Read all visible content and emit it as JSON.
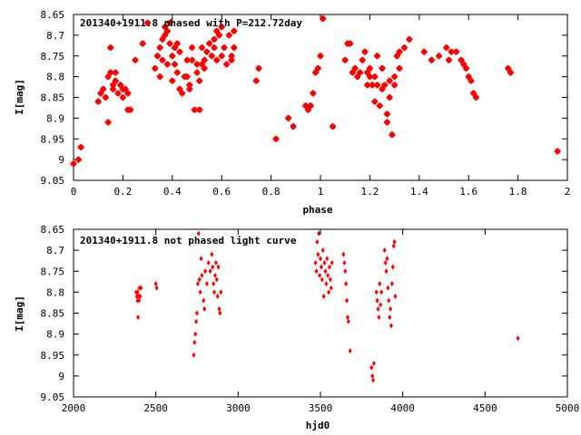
{
  "chart_data": [
    {
      "type": "scatter",
      "title": "201340+1911.8 phased with P=212.72day",
      "xlabel": "phase",
      "ylabel": "I[mag]",
      "xlim": [
        0,
        2
      ],
      "ylim": [
        8.65,
        9.05
      ],
      "y_inverted": true,
      "grid": false,
      "marker": "star",
      "color": "#ff0000",
      "xticks": [
        "0",
        "0.2",
        "0.4",
        "0.6",
        "0.8",
        "1",
        "1.2",
        "1.4",
        "1.6",
        "1.8",
        "2"
      ],
      "yticks": [
        "8.65",
        "8.7",
        "8.75",
        "8.8",
        "8.85",
        "8.9",
        "8.95",
        "9",
        "9.05"
      ],
      "points": [
        [
          0.0,
          9.01
        ],
        [
          0.02,
          9.0
        ],
        [
          0.03,
          8.97
        ],
        [
          0.1,
          8.86
        ],
        [
          0.11,
          8.84
        ],
        [
          0.12,
          8.83
        ],
        [
          0.13,
          8.85
        ],
        [
          0.14,
          8.8
        ],
        [
          0.14,
          8.91
        ],
        [
          0.15,
          8.79
        ],
        [
          0.15,
          8.73
        ],
        [
          0.16,
          8.83
        ],
        [
          0.16,
          8.82
        ],
        [
          0.17,
          8.79
        ],
        [
          0.17,
          8.81
        ],
        [
          0.18,
          8.84
        ],
        [
          0.19,
          8.82
        ],
        [
          0.2,
          8.83
        ],
        [
          0.2,
          8.85
        ],
        [
          0.21,
          8.83
        ],
        [
          0.22,
          8.84
        ],
        [
          0.22,
          8.88
        ],
        [
          0.23,
          8.88
        ],
        [
          0.25,
          8.76
        ],
        [
          0.28,
          8.72
        ],
        [
          0.3,
          8.67
        ],
        [
          0.33,
          8.78
        ],
        [
          0.34,
          8.75
        ],
        [
          0.35,
          8.73
        ],
        [
          0.35,
          8.8
        ],
        [
          0.36,
          8.76
        ],
        [
          0.36,
          8.71
        ],
        [
          0.37,
          8.7
        ],
        [
          0.37,
          8.68
        ],
        [
          0.38,
          8.77
        ],
        [
          0.38,
          8.69
        ],
        [
          0.39,
          8.72
        ],
        [
          0.39,
          8.67
        ],
        [
          0.4,
          8.75
        ],
        [
          0.4,
          8.81
        ],
        [
          0.41,
          8.77
        ],
        [
          0.41,
          8.73
        ],
        [
          0.42,
          8.79
        ],
        [
          0.42,
          8.72
        ],
        [
          0.43,
          8.74
        ],
        [
          0.43,
          8.83
        ],
        [
          0.44,
          8.84
        ],
        [
          0.45,
          8.8
        ],
        [
          0.46,
          8.8
        ],
        [
          0.46,
          8.76
        ],
        [
          0.47,
          8.83
        ],
        [
          0.47,
          8.82
        ],
        [
          0.48,
          8.76
        ],
        [
          0.48,
          8.73
        ],
        [
          0.49,
          8.88
        ],
        [
          0.5,
          8.77
        ],
        [
          0.5,
          8.79
        ],
        [
          0.51,
          8.88
        ],
        [
          0.51,
          8.81
        ],
        [
          0.52,
          8.77
        ],
        [
          0.52,
          8.73
        ],
        [
          0.53,
          8.76
        ],
        [
          0.53,
          8.78
        ],
        [
          0.54,
          8.74
        ],
        [
          0.55,
          8.72
        ],
        [
          0.56,
          8.75
        ],
        [
          0.57,
          8.73
        ],
        [
          0.57,
          8.71
        ],
        [
          0.58,
          8.69
        ],
        [
          0.58,
          8.76
        ],
        [
          0.59,
          8.7
        ],
        [
          0.6,
          8.68
        ],
        [
          0.6,
          8.75
        ],
        [
          0.61,
          8.73
        ],
        [
          0.62,
          8.77
        ],
        [
          0.63,
          8.7
        ],
        [
          0.64,
          8.75
        ],
        [
          0.64,
          8.76
        ],
        [
          0.65,
          8.73
        ],
        [
          0.65,
          8.69
        ],
        [
          0.74,
          8.81
        ],
        [
          0.75,
          8.78
        ],
        [
          0.82,
          8.95
        ],
        [
          0.87,
          8.9
        ],
        [
          0.89,
          8.92
        ],
        [
          0.94,
          8.87
        ],
        [
          0.95,
          8.88
        ],
        [
          0.96,
          8.87
        ],
        [
          0.97,
          8.84
        ],
        [
          0.98,
          8.79
        ],
        [
          0.99,
          8.78
        ],
        [
          1.0,
          8.75
        ],
        [
          1.01,
          8.66
        ],
        [
          1.05,
          8.92
        ],
        [
          1.1,
          8.76
        ],
        [
          1.11,
          8.72
        ],
        [
          1.12,
          8.72
        ],
        [
          1.13,
          8.79
        ],
        [
          1.14,
          8.78
        ],
        [
          1.15,
          8.8
        ],
        [
          1.16,
          8.79
        ],
        [
          1.17,
          8.76
        ],
        [
          1.18,
          8.74
        ],
        [
          1.19,
          8.79
        ],
        [
          1.19,
          8.82
        ],
        [
          1.2,
          8.8
        ],
        [
          1.2,
          8.78
        ],
        [
          1.21,
          8.82
        ],
        [
          1.22,
          8.8
        ],
        [
          1.22,
          8.86
        ],
        [
          1.23,
          8.82
        ],
        [
          1.23,
          8.75
        ],
        [
          1.24,
          8.87
        ],
        [
          1.25,
          8.83
        ],
        [
          1.25,
          8.78
        ],
        [
          1.26,
          8.82
        ],
        [
          1.27,
          8.89
        ],
        [
          1.27,
          8.91
        ],
        [
          1.28,
          8.81
        ],
        [
          1.28,
          8.85
        ],
        [
          1.29,
          8.94
        ],
        [
          1.3,
          8.8
        ],
        [
          1.3,
          8.82
        ],
        [
          1.31,
          8.75
        ],
        [
          1.32,
          8.74
        ],
        [
          1.32,
          8.78
        ],
        [
          1.34,
          8.73
        ],
        [
          1.36,
          8.71
        ],
        [
          1.42,
          8.74
        ],
        [
          1.45,
          8.76
        ],
        [
          1.48,
          8.75
        ],
        [
          1.51,
          8.73
        ],
        [
          1.52,
          8.76
        ],
        [
          1.53,
          8.74
        ],
        [
          1.55,
          8.74
        ],
        [
          1.57,
          8.76
        ],
        [
          1.58,
          8.77
        ],
        [
          1.59,
          8.78
        ],
        [
          1.6,
          8.8
        ],
        [
          1.61,
          8.81
        ],
        [
          1.62,
          8.84
        ],
        [
          1.63,
          8.85
        ],
        [
          1.76,
          8.78
        ],
        [
          1.77,
          8.79
        ],
        [
          1.96,
          8.98
        ]
      ]
    },
    {
      "type": "scatter",
      "title": "201340+1911.8 not phased light curve",
      "xlabel": "hjd0",
      "ylabel": "I[mag]",
      "xlim": [
        2000,
        5000
      ],
      "ylim": [
        8.65,
        9.05
      ],
      "y_inverted": true,
      "grid": false,
      "marker": "diamond",
      "color": "#ff0000",
      "xticks": [
        "2000",
        "2500",
        "3000",
        "3500",
        "4000",
        "4500",
        "5000"
      ],
      "yticks": [
        "8.65",
        "8.7",
        "8.75",
        "8.8",
        "8.85",
        "8.9",
        "8.95",
        "9",
        "9.05"
      ],
      "points": [
        [
          2380,
          8.8
        ],
        [
          2385,
          8.81
        ],
        [
          2388,
          8.82
        ],
        [
          2390,
          8.8
        ],
        [
          2392,
          8.86
        ],
        [
          2395,
          8.81
        ],
        [
          2398,
          8.82
        ],
        [
          2400,
          8.79
        ],
        [
          2405,
          8.81
        ],
        [
          2410,
          8.79
        ],
        [
          2500,
          8.78
        ],
        [
          2505,
          8.79
        ],
        [
          2730,
          8.95
        ],
        [
          2735,
          8.92
        ],
        [
          2740,
          8.9
        ],
        [
          2745,
          8.87
        ],
        [
          2750,
          8.85
        ],
        [
          2755,
          8.78
        ],
        [
          2760,
          8.66
        ],
        [
          2765,
          8.77
        ],
        [
          2770,
          8.8
        ],
        [
          2775,
          8.72
        ],
        [
          2780,
          8.76
        ],
        [
          2790,
          8.82
        ],
        [
          2795,
          8.84
        ],
        [
          2800,
          8.75
        ],
        [
          2810,
          8.78
        ],
        [
          2820,
          8.73
        ],
        [
          2830,
          8.75
        ],
        [
          2840,
          8.71
        ],
        [
          2845,
          8.74
        ],
        [
          2850,
          8.78
        ],
        [
          2855,
          8.8
        ],
        [
          2860,
          8.76
        ],
        [
          2865,
          8.73
        ],
        [
          2870,
          8.77
        ],
        [
          2875,
          8.81
        ],
        [
          2880,
          8.74
        ],
        [
          2885,
          8.84
        ],
        [
          2890,
          8.85
        ],
        [
          2895,
          8.8
        ],
        [
          3470,
          8.73
        ],
        [
          3475,
          8.75
        ],
        [
          3480,
          8.68
        ],
        [
          3485,
          8.71
        ],
        [
          3490,
          8.66
        ],
        [
          3495,
          8.76
        ],
        [
          3500,
          8.72
        ],
        [
          3505,
          8.74
        ],
        [
          3510,
          8.77
        ],
        [
          3515,
          8.7
        ],
        [
          3520,
          8.81
        ],
        [
          3525,
          8.73
        ],
        [
          3530,
          8.75
        ],
        [
          3535,
          8.78
        ],
        [
          3540,
          8.72
        ],
        [
          3545,
          8.76
        ],
        [
          3550,
          8.8
        ],
        [
          3555,
          8.74
        ],
        [
          3560,
          8.77
        ],
        [
          3565,
          8.79
        ],
        [
          3570,
          8.73
        ],
        [
          3640,
          8.71
        ],
        [
          3645,
          8.73
        ],
        [
          3650,
          8.75
        ],
        [
          3655,
          8.78
        ],
        [
          3660,
          8.82
        ],
        [
          3665,
          8.86
        ],
        [
          3670,
          8.87
        ],
        [
          3680,
          8.94
        ],
        [
          3810,
          8.98
        ],
        [
          3815,
          9.0
        ],
        [
          3820,
          9.01
        ],
        [
          3825,
          8.97
        ],
        [
          3840,
          8.8
        ],
        [
          3845,
          8.82
        ],
        [
          3850,
          8.84
        ],
        [
          3855,
          8.86
        ],
        [
          3860,
          8.78
        ],
        [
          3865,
          8.83
        ],
        [
          3870,
          8.8
        ],
        [
          3890,
          8.7
        ],
        [
          3895,
          8.73
        ],
        [
          3900,
          8.75
        ],
        [
          3905,
          8.72
        ],
        [
          3910,
          8.79
        ],
        [
          3915,
          8.82
        ],
        [
          3920,
          8.86
        ],
        [
          3925,
          8.84
        ],
        [
          3930,
          8.88
        ],
        [
          3935,
          8.78
        ],
        [
          3940,
          8.74
        ],
        [
          3945,
          8.69
        ],
        [
          3950,
          8.68
        ],
        [
          3955,
          8.81
        ],
        [
          4700,
          8.91
        ]
      ]
    }
  ]
}
